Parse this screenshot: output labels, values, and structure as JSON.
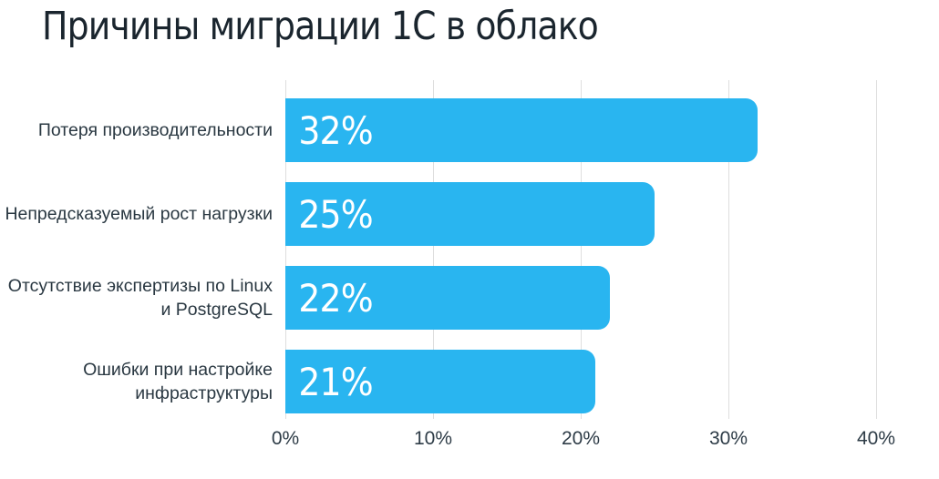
{
  "chart_data": {
    "type": "bar",
    "orientation": "horizontal",
    "title": "Причины миграции 1С в облако",
    "categories": [
      "Потеря производительности",
      "Непредсказуемый рост нагрузки",
      "Отсутствие экспертизы по Linux и PostgreSQL",
      "Ошибки при настройке инфраструктуры"
    ],
    "values": [
      32,
      25,
      22,
      21
    ],
    "value_labels": [
      "32%",
      "25%",
      "22%",
      "21%"
    ],
    "x_ticks": [
      "0%",
      "10%",
      "20%",
      "30%",
      "40%"
    ],
    "xlim": [
      0,
      40
    ],
    "xlabel": "",
    "ylabel": "",
    "grid": "vertical-only",
    "legend": "none",
    "background": "#FFFFFF",
    "bar_color": "#29B5F0",
    "value_label_color": "#FFFFFF",
    "title_color": "#1A252E",
    "label_color": "#2A3842",
    "tick_color": "#2E3C47",
    "gridline_color": "#DEDEDE"
  }
}
